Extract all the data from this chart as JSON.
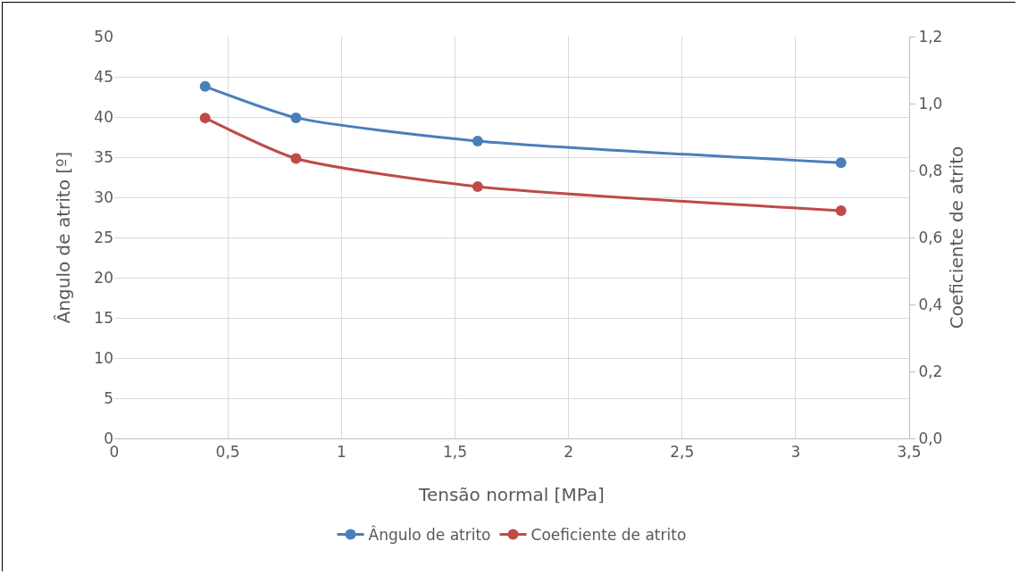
{
  "chart_data": {
    "type": "line",
    "xlabel": "Tensão normal [MPa]",
    "ylabel": "Ângulo de atrito [º]",
    "y2label": "Coeficiente de atrito",
    "x": [
      0.4,
      0.8,
      1.6,
      3.2
    ],
    "series": [
      {
        "name": "Ângulo de atrito",
        "color": "#4a7ebb",
        "values": [
          43.8,
          39.9,
          37.0,
          34.3
        ]
      },
      {
        "name": "Coeficiente de atrito",
        "color": "#be4b48",
        "values": [
          0.957,
          0.836,
          0.752,
          0.68
        ],
        "axis": "y2"
      }
    ],
    "xlim": [
      0,
      3.5
    ],
    "xticks": [
      0,
      {
        "value": 0.5,
        "label": "0,5"
      },
      1,
      {
        "value": 1.5,
        "label": "1,5"
      },
      2,
      {
        "value": 2.5,
        "label": "2,5"
      },
      3,
      {
        "value": 3.5,
        "label": "3,5"
      }
    ],
    "ylim": [
      0,
      50
    ],
    "yticks": [
      0,
      5,
      10,
      15,
      20,
      25,
      30,
      35,
      40,
      45,
      50
    ],
    "y2lim": [
      0,
      1.2
    ],
    "y2ticks": [
      {
        "value": 0,
        "label": "0,0"
      },
      {
        "value": 0.2,
        "label": "0,2"
      },
      {
        "value": 0.4,
        "label": "0,4"
      },
      {
        "value": 0.6,
        "label": "0,6"
      },
      {
        "value": 0.8,
        "label": "0,8"
      },
      {
        "value": 1.0,
        "label": "1,0"
      },
      {
        "value": 1.2,
        "label": "1,2"
      }
    ],
    "grid": true,
    "legend": "bottom",
    "marker": "circle",
    "line_style": "solid"
  }
}
